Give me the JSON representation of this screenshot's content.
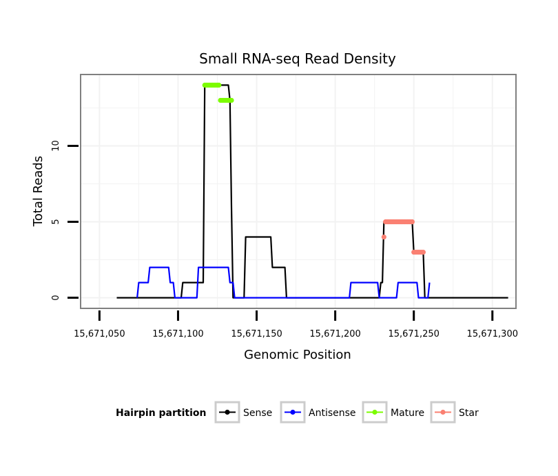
{
  "chart_data": {
    "type": "line",
    "title": "Small RNA-seq Read Density",
    "xlabel": "Genomic Position",
    "ylabel": "Total Reads",
    "xlim": [
      15671038,
      15671315
    ],
    "ylim": [
      -0.7,
      14.7
    ],
    "x_ticks": [
      15671050,
      15671100,
      15671150,
      15671200,
      15671250,
      15671300
    ],
    "x_tick_labels": [
      "15,671,050",
      "15,671,100",
      "15,671,150",
      "15,671,200",
      "15,671,250",
      "15,671,300"
    ],
    "y_ticks": [
      0,
      5,
      10
    ],
    "y_tick_labels": [
      "0",
      "5",
      "10"
    ],
    "grid": true,
    "legend": {
      "title": "Hairpin partition",
      "position": "bottom",
      "entries": [
        "Sense",
        "Antisense",
        "Mature",
        "Star"
      ]
    },
    "series": [
      {
        "name": "Sense",
        "color": "#000000",
        "style": "line",
        "x": [
          15671061,
          15671102,
          15671103,
          15671116,
          15671117,
          15671132,
          15671133,
          15671134,
          15671135,
          15671137,
          15671142,
          15671143,
          15671159,
          15671160,
          15671168,
          15671169,
          15671228,
          15671229,
          15671230,
          15671231,
          15671249,
          15671250,
          15671256,
          15671257,
          15671310
        ],
        "y": [
          0,
          0,
          1,
          1,
          14,
          14,
          13,
          6,
          0,
          0,
          0,
          4,
          4,
          2,
          2,
          0,
          0,
          1,
          1,
          5,
          5,
          3,
          3,
          0,
          0
        ]
      },
      {
        "name": "Antisense",
        "color": "#0000ff",
        "style": "line",
        "x": [
          15671074,
          15671075,
          15671081,
          15671082,
          15671094,
          15671095,
          15671097,
          15671098,
          15671112,
          15671113,
          15671132,
          15671133,
          15671135,
          15671136,
          15671209,
          15671210,
          15671227,
          15671228,
          15671239,
          15671240,
          15671252,
          15671253,
          15671259,
          15671260
        ],
        "y": [
          0,
          1,
          1,
          2,
          2,
          1,
          1,
          0,
          0,
          2,
          2,
          1,
          1,
          0,
          0,
          1,
          1,
          0,
          0,
          1,
          1,
          0,
          0,
          1
        ]
      },
      {
        "name": "Mature",
        "color": "#7cfc00",
        "style": "points",
        "x": [
          15671117,
          15671118,
          15671119,
          15671120,
          15671121,
          15671122,
          15671123,
          15671124,
          15671125,
          15671126,
          15671127,
          15671128,
          15671129,
          15671130,
          15671131,
          15671132,
          15671133,
          15671134
        ],
        "y": [
          14,
          14,
          14,
          14,
          14,
          14,
          14,
          14,
          14,
          14,
          13,
          13,
          13,
          13,
          13,
          13,
          13,
          13
        ]
      },
      {
        "name": "Star",
        "color": "#fa8072",
        "style": "points",
        "x": [
          15671231,
          15671232,
          15671233,
          15671234,
          15671235,
          15671236,
          15671237,
          15671238,
          15671239,
          15671240,
          15671241,
          15671242,
          15671243,
          15671244,
          15671245,
          15671246,
          15671247,
          15671248,
          15671249,
          15671250,
          15671251,
          15671252,
          15671253,
          15671254,
          15671255,
          15671256
        ],
        "y": [
          4,
          5,
          5,
          5,
          5,
          5,
          5,
          5,
          5,
          5,
          5,
          5,
          5,
          5,
          5,
          5,
          5,
          5,
          5,
          3,
          3,
          3,
          3,
          3,
          3,
          3
        ]
      }
    ]
  }
}
